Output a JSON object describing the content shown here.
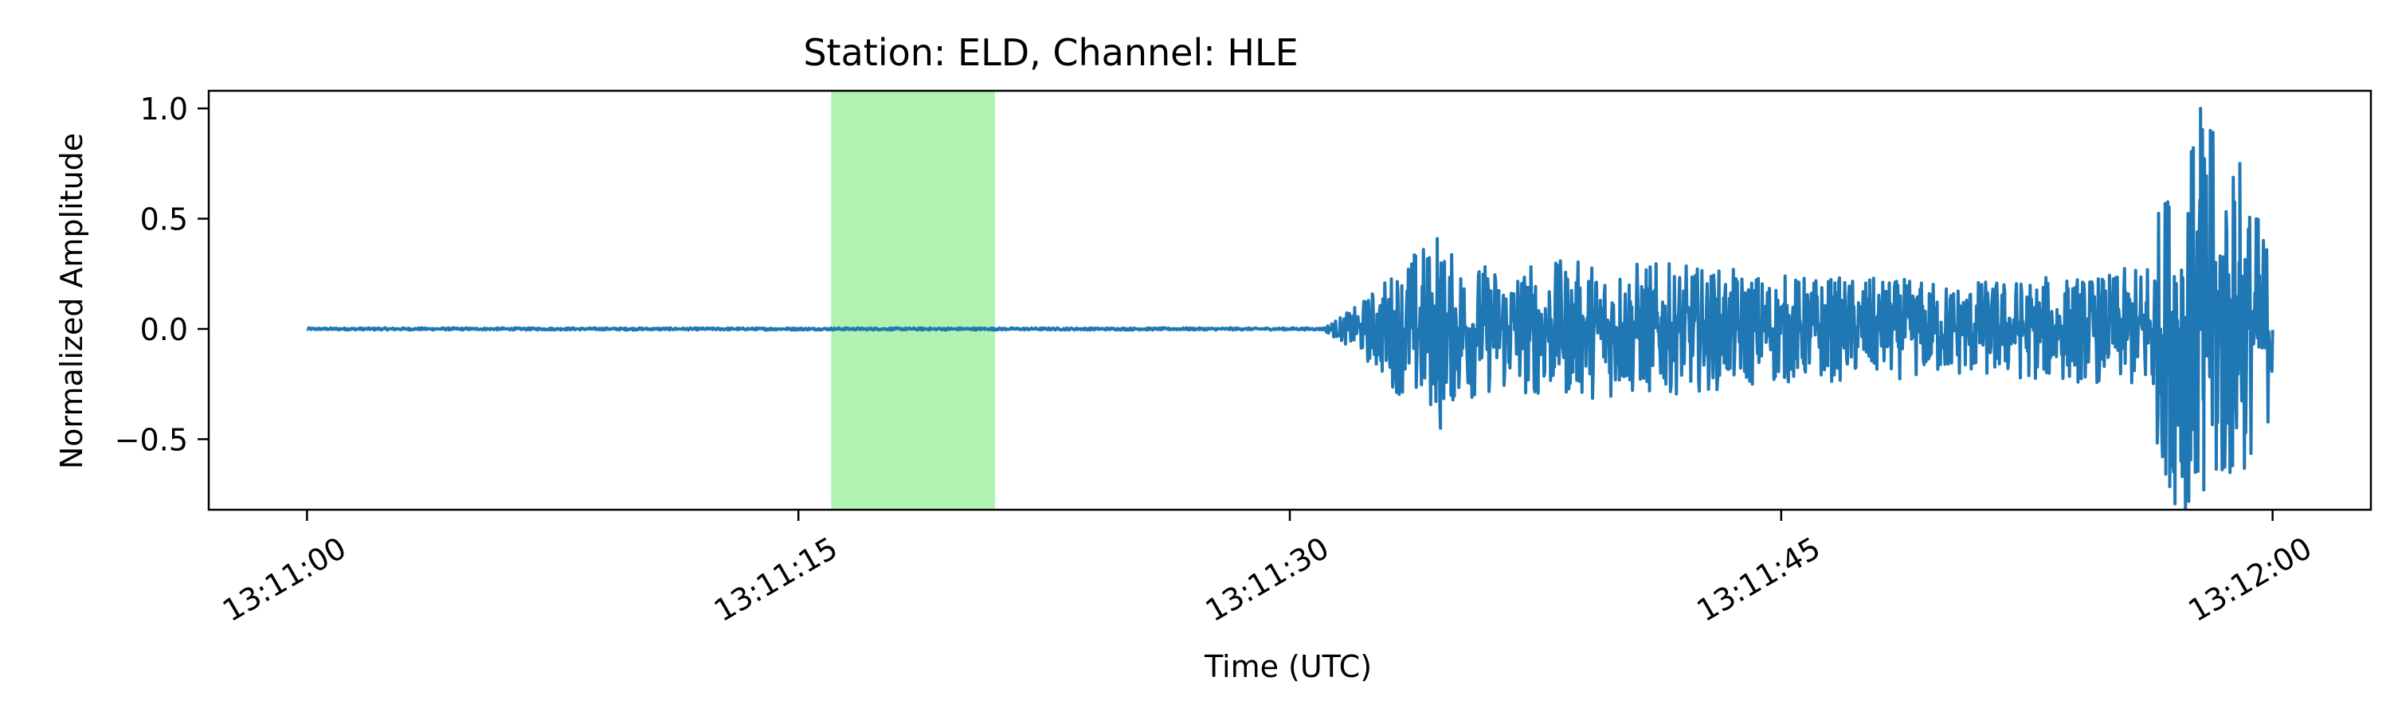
{
  "chart_data": {
    "type": "line",
    "title": "Station: ELD, Channel: HLE",
    "xlabel": "Time (UTC)",
    "ylabel": "Normalized Amplitude",
    "x_ticks": [
      {
        "t": 0,
        "label": "13:11:00"
      },
      {
        "t": 15,
        "label": "13:11:15"
      },
      {
        "t": 30,
        "label": "13:11:30"
      },
      {
        "t": 45,
        "label": "13:11:45"
      },
      {
        "t": 60,
        "label": "13:12:00"
      }
    ],
    "y_ticks": [
      {
        "v": 1.0,
        "label": "1.0"
      },
      {
        "v": 0.5,
        "label": "0.5"
      },
      {
        "v": 0.0,
        "label": "0.0"
      },
      {
        "v": -0.5,
        "label": "−0.5"
      }
    ],
    "xlim": [
      "13:10:57",
      "13:12:03"
    ],
    "ylim": [
      -0.82,
      1.08
    ],
    "grid": false,
    "highlight_span": {
      "start": "13:11:16",
      "end": "13:11:21",
      "color": "#b2f2b0"
    },
    "series": [
      {
        "color": "#1f77b4",
        "start": "13:11:00",
        "end": "13:12:00",
        "envelope": [
          {
            "t": "13:11:00",
            "amp": 0.005
          },
          {
            "t": "13:11:31",
            "amp": 0.005
          },
          {
            "t": "13:11:32",
            "amp": 0.1
          },
          {
            "t": "13:11:33",
            "amp": 0.25
          },
          {
            "t": "13:11:34",
            "amp": 0.4
          },
          {
            "t": "13:11:36",
            "amp": 0.3
          },
          {
            "t": "13:11:40",
            "amp": 0.32
          },
          {
            "t": "13:11:45",
            "amp": 0.25
          },
          {
            "t": "13:11:50",
            "amp": 0.22
          },
          {
            "t": "13:11:55",
            "amp": 0.25
          },
          {
            "t": "13:11:56",
            "amp": 0.3
          },
          {
            "t": "13:11:57",
            "amp": 0.8
          },
          {
            "t": "13:11:58",
            "amp": 0.95
          },
          {
            "t": "13:11:59",
            "amp": 0.7
          },
          {
            "t": "13:12:00",
            "amp": 0.4
          }
        ],
        "peaks": [
          {
            "t": "13:11:34.5",
            "v": 0.41
          },
          {
            "t": "13:11:34.6",
            "v": -0.45
          },
          {
            "t": "13:11:57.8",
            "v": 1.0
          },
          {
            "t": "13:11:57.9",
            "v": -0.73
          },
          {
            "t": "13:11:58.1",
            "v": 0.9
          },
          {
            "t": "13:11:58.7",
            "v": -0.65
          },
          {
            "t": "13:11:59.0",
            "v": 0.75
          }
        ]
      }
    ]
  }
}
